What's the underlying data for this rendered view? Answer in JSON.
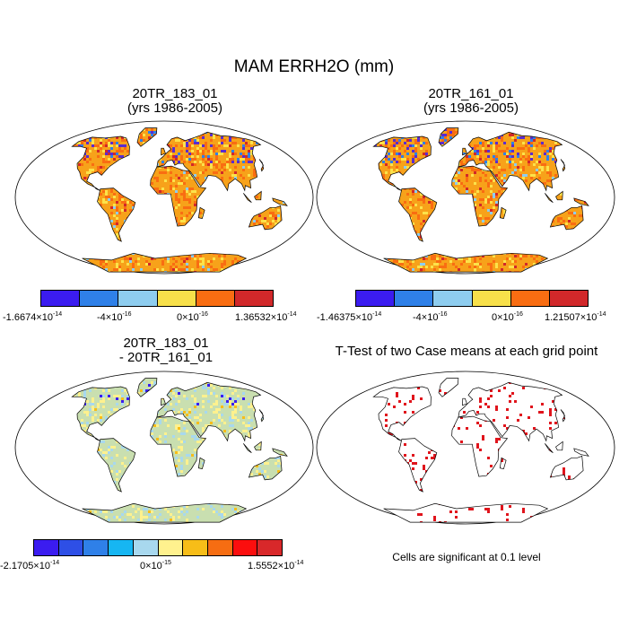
{
  "title": "MAM ERRH2O (mm)",
  "panels": [
    {
      "id": "case1",
      "title_line1": "20TR_183_01",
      "title_line2": "(yrs 1986-2005)",
      "style": "orange",
      "colorbar": {
        "colors": [
          "#3b1cf0",
          "#2f80e8",
          "#8ecdef",
          "#f7e04a",
          "#f96d12",
          "#d1282a"
        ],
        "labels": [
          {
            "mant": "-1.6674×10",
            "exp": "-14"
          },
          {
            "mant": "-4×10",
            "exp": "-16"
          },
          {
            "mant": "0×10",
            "exp": "-16"
          },
          {
            "mant": "1.36532×10",
            "exp": "-14"
          }
        ]
      }
    },
    {
      "id": "case2",
      "title_line1": "20TR_161_01",
      "title_line2": "(yrs 1986-2005)",
      "style": "orange",
      "colorbar": {
        "colors": [
          "#3b1cf0",
          "#2f80e8",
          "#8ecdef",
          "#f7e04a",
          "#f96d12",
          "#d1282a"
        ],
        "labels": [
          {
            "mant": "-1.46375×10",
            "exp": "-14"
          },
          {
            "mant": "-4×10",
            "exp": "-16"
          },
          {
            "mant": "0×10",
            "exp": "-16"
          },
          {
            "mant": "1.21507×10",
            "exp": "-14"
          }
        ]
      }
    },
    {
      "id": "diff",
      "title_line1": "20TR_183_01",
      "title_line2": "- 20TR_161_01",
      "style": "green",
      "colorbar": {
        "colors": [
          "#3b1cf0",
          "#2e4fe6",
          "#2f80e8",
          "#16b6f2",
          "#a8d8ee",
          "#fff18e",
          "#f7bd18",
          "#f66d12",
          "#fb0e0e",
          "#d8282a"
        ],
        "labels": [
          {
            "mant": "-2.1705×10",
            "exp": "-14"
          },
          {
            "mant": "0×10",
            "exp": "-15"
          },
          {
            "mant": "1.5552×10",
            "exp": "-14"
          }
        ]
      }
    },
    {
      "id": "ttest",
      "title_line1": "T-Test of two Case means at each grid point",
      "title_line2": "",
      "style": "ttest",
      "note": "Cells are significant at 0.1 level"
    }
  ]
}
